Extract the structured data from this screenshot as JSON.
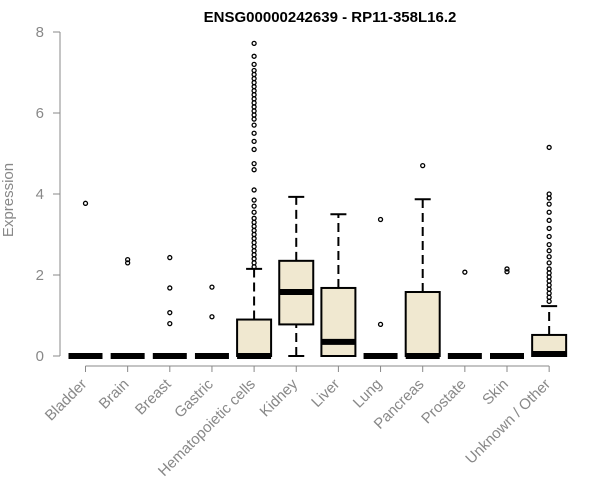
{
  "chart_data": {
    "type": "boxplot",
    "title": "ENSG00000242639 - RP11-358L16.2",
    "ylabel": "Expression",
    "xlabel": "",
    "ylim": [
      0,
      8
    ],
    "yticks": [
      0,
      2,
      4,
      6,
      8
    ],
    "box_color": "#f0e8d0",
    "categories": [
      "Bladder",
      "Brain",
      "Breast",
      "Gastric",
      "Hematopoietic cells",
      "Kidney",
      "Liver",
      "Lung",
      "Pancreas",
      "Prostate",
      "Skin",
      "Unknown / Other"
    ],
    "boxes": [
      {
        "category": "Bladder",
        "q1": 0,
        "median": 0,
        "q3": 0,
        "whisker_low": 0,
        "whisker_high": 0,
        "outliers": [
          3.77
        ]
      },
      {
        "category": "Brain",
        "q1": 0,
        "median": 0,
        "q3": 0,
        "whisker_low": 0,
        "whisker_high": 0,
        "outliers": [
          2.3,
          2.38
        ]
      },
      {
        "category": "Breast",
        "q1": 0,
        "median": 0,
        "q3": 0,
        "whisker_low": 0,
        "whisker_high": 0,
        "outliers": [
          0.8,
          1.07,
          1.68,
          2.43
        ]
      },
      {
        "category": "Gastric",
        "q1": 0,
        "median": 0,
        "q3": 0,
        "whisker_low": 0,
        "whisker_high": 0,
        "outliers": [
          0.97,
          1.7
        ]
      },
      {
        "category": "Hematopoietic cells",
        "q1": 0,
        "median": 0,
        "q3": 0.9,
        "whisker_low": 0,
        "whisker_high": 2.15,
        "outliers": [
          2.2,
          2.3,
          2.4,
          2.5,
          2.6,
          2.7,
          2.8,
          2.9,
          3.0,
          3.1,
          3.2,
          3.3,
          3.4,
          3.55,
          3.7,
          3.85,
          4.1,
          4.6,
          4.75,
          5.1,
          5.3,
          5.5,
          5.7,
          5.85,
          5.95,
          6.05,
          6.15,
          6.25,
          6.35,
          6.45,
          6.55,
          6.65,
          6.75,
          6.85,
          6.95,
          7.05,
          7.2,
          7.4,
          7.72
        ]
      },
      {
        "category": "Kidney",
        "q1": 0.78,
        "median": 1.58,
        "q3": 2.35,
        "whisker_low": 0,
        "whisker_high": 3.93,
        "outliers": []
      },
      {
        "category": "Liver",
        "q1": 0,
        "median": 0.35,
        "q3": 1.68,
        "whisker_low": 0,
        "whisker_high": 3.5,
        "outliers": []
      },
      {
        "category": "Lung",
        "q1": 0,
        "median": 0,
        "q3": 0,
        "whisker_low": 0,
        "whisker_high": 0,
        "outliers": [
          0.78,
          3.37
        ]
      },
      {
        "category": "Pancreas",
        "q1": 0,
        "median": 0,
        "q3": 1.58,
        "whisker_low": 0,
        "whisker_high": 3.87,
        "outliers": [
          4.7
        ]
      },
      {
        "category": "Prostate",
        "q1": 0,
        "median": 0,
        "q3": 0,
        "whisker_low": 0,
        "whisker_high": 0,
        "outliers": [
          2.07
        ]
      },
      {
        "category": "Skin",
        "q1": 0,
        "median": 0,
        "q3": 0,
        "whisker_low": 0,
        "whisker_high": 0,
        "outliers": [
          2.08,
          2.15
        ]
      },
      {
        "category": "Unknown / Other",
        "q1": 0,
        "median": 0.05,
        "q3": 0.52,
        "whisker_low": 0,
        "whisker_high": 1.23,
        "outliers": [
          1.35,
          1.45,
          1.55,
          1.65,
          1.75,
          1.85,
          1.95,
          2.05,
          2.15,
          2.3,
          2.45,
          2.6,
          2.75,
          2.95,
          3.15,
          3.35,
          3.55,
          3.75,
          3.9,
          4.0,
          5.15
        ]
      }
    ]
  }
}
